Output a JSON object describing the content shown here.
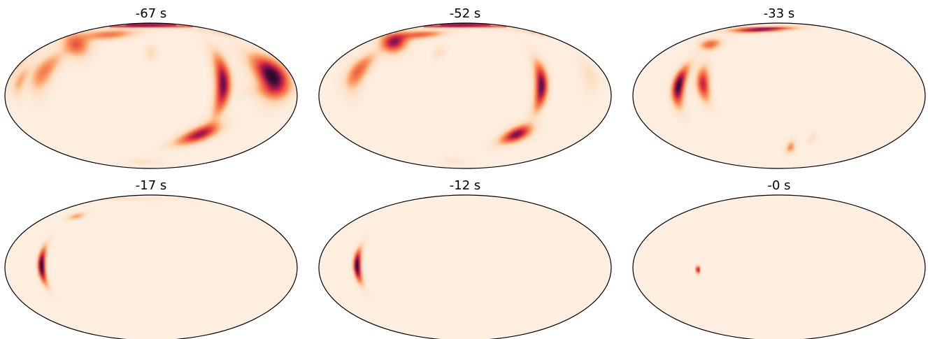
{
  "chart_data": {
    "type": "heatmap",
    "projection": "mollweide",
    "colormap": [
      "#fdeee0",
      "#fdd9b8",
      "#fb9e64",
      "#f26a46",
      "#e13342",
      "#a0174f",
      "#4e0f3f",
      "#1c0a22"
    ],
    "axes_visible": false,
    "panels": [
      {
        "title": "-67 s",
        "blobs": [
          {
            "lon": -30,
            "lat": 84,
            "slon": 26,
            "slat": 3,
            "rot": 0,
            "amp": 0.95
          },
          {
            "lon": -130,
            "lat": 55,
            "slon": 18,
            "slat": 5,
            "rot": -30,
            "amp": 0.45
          },
          {
            "lon": -95,
            "lat": 68,
            "slon": 14,
            "slat": 5,
            "rot": 0,
            "amp": 0.4
          },
          {
            "lon": -140,
            "lat": 25,
            "slon": 9,
            "slat": 14,
            "rot": 0,
            "amp": 0.38
          },
          {
            "lon": -165,
            "lat": 15,
            "slon": 5,
            "slat": 10,
            "rot": 0,
            "amp": 0.25
          },
          {
            "lon": 0,
            "lat": 45,
            "slon": 4,
            "slat": 6,
            "rot": 0,
            "amp": 0.15
          },
          {
            "lon": 90,
            "lat": 12,
            "slon": 6,
            "slat": 20,
            "rot": -12,
            "amp": 0.82
          },
          {
            "lon": 70,
            "lat": -40,
            "slon": 14,
            "slat": 6,
            "rot": 22,
            "amp": 0.72
          },
          {
            "lon": 155,
            "lat": 20,
            "slon": 12,
            "slat": 14,
            "rot": -25,
            "amp": 0.98
          },
          {
            "lon": 140,
            "lat": 5,
            "slon": 20,
            "slat": 5,
            "rot": 0,
            "amp": 0.1
          },
          {
            "lon": -20,
            "lat": -75,
            "slon": 8,
            "slat": 4,
            "rot": 0,
            "amp": 0.1
          }
        ]
      },
      {
        "title": "-52 s",
        "blobs": [
          {
            "lon": -30,
            "lat": 84,
            "slon": 26,
            "slat": 3,
            "rot": 0,
            "amp": 0.95
          },
          {
            "lon": -130,
            "lat": 58,
            "slon": 14,
            "slat": 5,
            "rot": -30,
            "amp": 0.75
          },
          {
            "lon": -100,
            "lat": 68,
            "slon": 12,
            "slat": 4,
            "rot": 0,
            "amp": 0.45
          },
          {
            "lon": -140,
            "lat": 25,
            "slon": 8,
            "slat": 13,
            "rot": 0,
            "amp": 0.45
          },
          {
            "lon": -40,
            "lat": 45,
            "slon": 4,
            "slat": 5,
            "rot": 0,
            "amp": 0.12
          },
          {
            "lon": 95,
            "lat": 10,
            "slon": 5,
            "slat": 16,
            "rot": -12,
            "amp": 0.85
          },
          {
            "lon": 75,
            "lat": -40,
            "slon": 10,
            "slat": 6,
            "rot": 22,
            "amp": 0.8
          },
          {
            "lon": 160,
            "lat": 20,
            "slon": 6,
            "slat": 12,
            "rot": -25,
            "amp": 0.12
          },
          {
            "lon": -30,
            "lat": -75,
            "slon": 6,
            "slat": 4,
            "rot": 0,
            "amp": 0.08
          }
        ]
      },
      {
        "title": "-33 s",
        "blobs": [
          {
            "lon": -55,
            "lat": 76,
            "slon": 14,
            "slat": 3,
            "rot": 5,
            "amp": 0.85
          },
          {
            "lon": -120,
            "lat": 55,
            "slon": 8,
            "slat": 4,
            "rot": -20,
            "amp": 0.45
          },
          {
            "lon": -125,
            "lat": 10,
            "slon": 5,
            "slat": 13,
            "rot": 0,
            "amp": 0.93
          },
          {
            "lon": -95,
            "lat": 12,
            "slon": 5,
            "slat": 12,
            "rot": 20,
            "amp": 0.65
          },
          {
            "lon": 20,
            "lat": -55,
            "slon": 3,
            "slat": 5,
            "rot": 0,
            "amp": 0.35
          },
          {
            "lon": 50,
            "lat": -45,
            "slon": 3,
            "slat": 4,
            "rot": 0,
            "amp": 0.12
          }
        ]
      },
      {
        "title": "-17 s",
        "blobs": [
          {
            "lon": -135,
            "lat": 2,
            "slon": 3,
            "slat": 12,
            "rot": 5,
            "amp": 0.97
          },
          {
            "lon": -130,
            "lat": 55,
            "slon": 5,
            "slat": 3,
            "rot": 0,
            "amp": 0.3
          },
          {
            "lon": -95,
            "lat": 80,
            "slon": 18,
            "slat": 2,
            "rot": 0,
            "amp": 0.12
          }
        ]
      },
      {
        "title": "-12 s",
        "blobs": [
          {
            "lon": -133,
            "lat": 2,
            "slon": 3,
            "slat": 11,
            "rot": 5,
            "amp": 0.97
          }
        ]
      },
      {
        "title": "-0 s",
        "blobs": [
          {
            "lon": -100,
            "lat": -2,
            "slon": 1.6,
            "slat": 2.5,
            "rot": 0,
            "amp": 0.85
          }
        ]
      }
    ]
  }
}
